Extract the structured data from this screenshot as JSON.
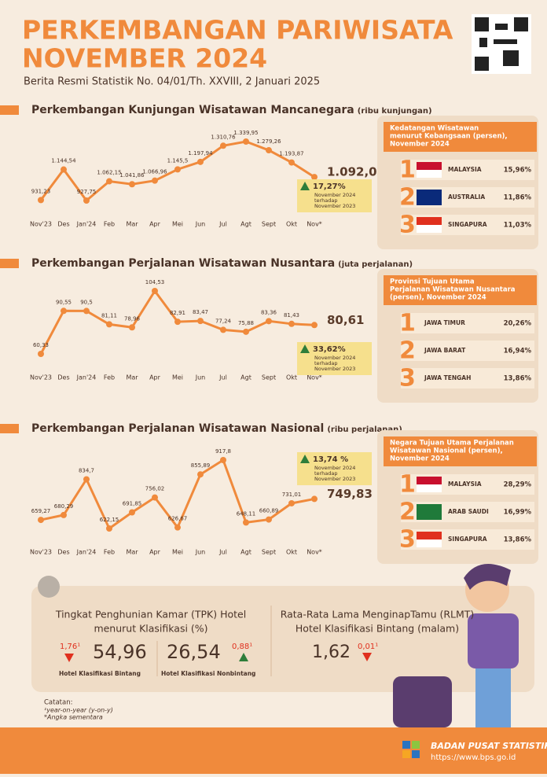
{
  "header": {
    "title_line1": "PERKEMBANGAN PARIWISATA",
    "title_line2": "NOVEMBER 2024",
    "subtitle": "Berita Resmi Statistik No. 04/01/Th. XXVIII, 2 Januari 2025"
  },
  "chart_data": [
    {
      "type": "line",
      "title": "Perkembangan Kunjungan Wisatawan Mancanegara",
      "unit": "(ribu kunjungan)",
      "color": "#f08a3c",
      "categories": [
        "Nov'23",
        "Des",
        "Jan'24",
        "Feb",
        "Mar",
        "Apr",
        "Mei",
        "Jun",
        "Jul",
        "Agt",
        "Sept",
        "Okt",
        "Nov*"
      ],
      "values": [
        931.23,
        1144.54,
        927.75,
        1062.15,
        1041.86,
        1066.96,
        1145.5,
        1197.94,
        1310.76,
        1339.95,
        1279.26,
        1193.87,
        1092.07
      ],
      "value_labels": [
        "931,23",
        "1.144,54",
        "927,75",
        "1.062,15",
        "1.041,86",
        "1.066,96",
        "1.145,5",
        "1.197,94",
        "1.310,76",
        "1.339,95",
        "1.279,26",
        "1.193,87",
        "1.092,07"
      ],
      "change": {
        "label": "17,27%",
        "direction": "up",
        "note_lines": [
          "November 2024",
          "terhadap",
          "November 2023"
        ]
      }
    },
    {
      "type": "line",
      "title": "Perkembangan Perjalanan Wisatawan Nusantara",
      "unit": "(juta perjalanan)",
      "color": "#f08a3c",
      "categories": [
        "Nov'23",
        "Des",
        "Jan'24",
        "Feb",
        "Mar",
        "Apr",
        "Mei",
        "Jun",
        "Jul",
        "Agt",
        "Sept",
        "Okt",
        "Nov*"
      ],
      "values": [
        60.33,
        90.55,
        90.5,
        81.11,
        78.96,
        104.53,
        82.91,
        83.47,
        77.24,
        75.88,
        83.36,
        81.43,
        80.61
      ],
      "value_labels": [
        "60,33",
        "90,55",
        "90,5",
        "81,11",
        "78,96",
        "104,53",
        "82,91",
        "83,47",
        "77,24",
        "75,88",
        "83,36",
        "81,43",
        "80,61"
      ],
      "change": {
        "label": "33,62%",
        "direction": "up",
        "note_lines": [
          "November 2024",
          "terhadap",
          "November 2023"
        ]
      }
    },
    {
      "type": "line",
      "title": "Perkembangan Perjalanan Wisatawan Nasional",
      "unit": "(ribu perjalanan)",
      "color": "#f08a3c",
      "categories": [
        "Nov'23",
        "Des",
        "Jan'24",
        "Feb",
        "Mar",
        "Apr",
        "Mei",
        "Jun",
        "Jul",
        "Agt",
        "Sept",
        "Okt",
        "Nov*"
      ],
      "values": [
        659.27,
        680.29,
        834.7,
        622.15,
        691.85,
        756.02,
        626.67,
        855.89,
        917.8,
        648.11,
        660.89,
        731.01,
        749.83
      ],
      "value_labels": [
        "659,27",
        "680,29",
        "834,7",
        "622,15",
        "691,85",
        "756,02",
        "626,67",
        "855,89",
        "917,8",
        "648,11",
        "660,89",
        "731,01",
        "749,83"
      ],
      "change": {
        "label": "13,74 %",
        "direction": "up",
        "note_lines": [
          "November 2024",
          "terhadap",
          "November 2023"
        ]
      }
    }
  ],
  "panels": [
    {
      "title_lines": [
        "Kedatangan Wisatawan",
        "menurut Kebangsaan (persen),",
        "November 2024"
      ],
      "items": [
        {
          "rank": 1,
          "name": "MALAYSIA",
          "share": "15,96%"
        },
        {
          "rank": 2,
          "name": "AUSTRALIA",
          "share": "11,86%"
        },
        {
          "rank": 3,
          "name": "SINGAPURA",
          "share": "11,03%"
        }
      ]
    },
    {
      "title_lines": [
        "Provinsi Tujuan Utama",
        "Perjalanan Wisatawan Nusantara",
        "(persen), November 2024"
      ],
      "items": [
        {
          "rank": 1,
          "name": "JAWA TIMUR",
          "share": "20,26%"
        },
        {
          "rank": 2,
          "name": "JAWA BARAT",
          "share": "16,94%"
        },
        {
          "rank": 3,
          "name": "JAWA TENGAH",
          "share": "13,86%"
        }
      ]
    },
    {
      "title_lines": [
        "Negara Tujuan Utama Perjalanan",
        "Wisatawan Nasional (persen),",
        "November 2024"
      ],
      "items": [
        {
          "rank": 1,
          "name": "MALAYSIA",
          "share": "28,29%"
        },
        {
          "rank": 2,
          "name": "ARAB SAUDI",
          "share": "16,99%"
        },
        {
          "rank": 3,
          "name": "SINGAPURA",
          "share": "13,86%"
        }
      ]
    }
  ],
  "tpk": {
    "title_lines": [
      "Tingkat Penghunian Kamar (TPK) Hotel",
      "menurut Klasifikasi (%)"
    ],
    "items": [
      {
        "value": "54,96",
        "change": "1,76¹",
        "direction": "down",
        "label": "Hotel Klasifikasi Bintang"
      },
      {
        "value": "26,54",
        "change": "0,88¹",
        "direction": "up",
        "label": "Hotel Klasifikasi Nonbintang"
      }
    ]
  },
  "rlmt": {
    "title_lines": [
      "Rata-Rata Lama MenginapTamu (RLMT)",
      "Hotel Klasifikasi Bintang  (malam)"
    ],
    "value": "1,62",
    "change": "0,01¹",
    "direction": "down"
  },
  "notes": {
    "heading": "Catatan:",
    "lines": [
      "¹year-on-year (y-on-y)",
      "*Angka sementara"
    ]
  },
  "footer": {
    "org": "BADAN PUSAT STATISTIK",
    "url": "https://www.bps.go.id"
  }
}
